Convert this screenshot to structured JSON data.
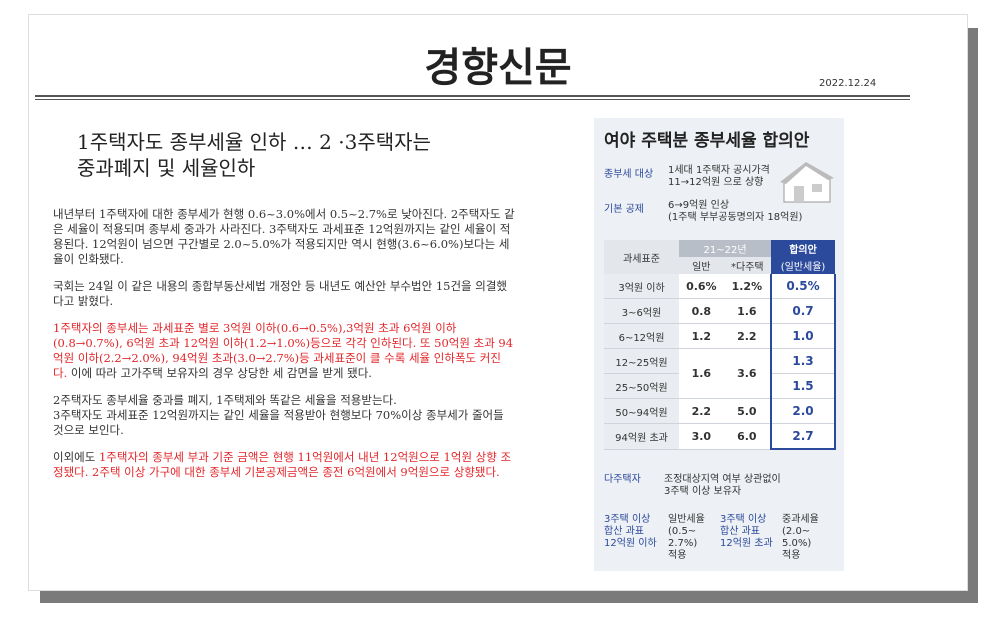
{
  "header": {
    "masthead": "경향신문",
    "date": "2022.12.24"
  },
  "article": {
    "headline": [
      "1주택자도 종부세율 인하 … 2 ·3주택자는",
      "중과폐지 및 세율인하"
    ],
    "paragraphs": [
      [
        {
          "text": "내년부터 1주택자에 대한 종부세가 현행 0.6~3.0%에서 0.5~2.7%로 낮아진다. 2주택자도 같은 세율이 적용되며 종부세 중과가 사라진다. 3주택자도 과세표준 12억원까지는 같인 세율이 적용된다. 12억원이 넘으면 구간별로 2.0~5.0%가 적용되지만 역시 현행(3.6~6.0%)보다는 세율이 인화됐다.",
          "red": false
        }
      ],
      [
        {
          "text": "국회는 24일 이 같은 내용의 종합부동산세법 개정안 등 내년도 예산안 부수법안 15건을 의결했다고 밝혔다.",
          "red": false
        }
      ],
      [
        {
          "text": "1주택자의 종부세는 과세표준 별로 3억원 이하(0.6→0.5%),3억원 초과 6억원 이하(0.8→0.7%), 6억원 초과 12억원 이하(1.2→1.0%)등으로 각각 인하된다. 또 50억원 초과 94억원 이하(2.2→2.0%), 94억원 초과(3.0→2.7%)등 과세표준이 클 수록 세율 인하폭도 커진다.",
          "red": true
        },
        {
          "text": " 이에 따라 고가주택 보유자의 경우 상당한 세 감면을 받게 됐다.",
          "red": false
        }
      ],
      [
        {
          "text": "2주택자도 종부세율 중과를 폐지, 1주택제와 똑같은 세율을 적용받는다.",
          "red": false
        },
        {
          "text": "3주택자도 과세표준 12억원까지는 같인 세율을 적용받아 현행보다 70%이상 종부세가 줄어들 것으로 보인다.",
          "red": false
        }
      ],
      [
        {
          "text": "이외에도 ",
          "red": false
        },
        {
          "text": "1주택자의 종부세 부과 기준 금액은 현행 11억원에서 내년 12억원으로 1억원 상향 조정됐다. 2주택 이상 가구에 대한 종부세 기본공제금액은 종전 6억원에서 9억원으로 상향됐다.",
          "red": true
        }
      ]
    ]
  },
  "infographic": {
    "title": "여야 주택분 종부세율 합의안",
    "info": [
      {
        "label": "종부세 대상",
        "lines": [
          "1세대 1주택자 공시가격",
          "11→12억원 으로 상향"
        ]
      },
      {
        "label": "기본 공제",
        "lines": [
          "6→9억원 인상",
          "(1주택 부부공동명의자 18억원)"
        ]
      }
    ],
    "table": {
      "header": {
        "bracket": "과세표준",
        "period": "21~22년",
        "general": "일반",
        "multi": "*다주택",
        "proposal": "합의안",
        "proposal_sub": "(일반세율)"
      },
      "rows": [
        {
          "bracket": "3억원 이하",
          "general": "0.6%",
          "multi": "1.2%",
          "proposal": "0.5%"
        },
        {
          "bracket": "3~6억원",
          "general": "0.8",
          "multi": "1.6",
          "proposal": "0.7"
        },
        {
          "bracket": "6~12억원",
          "general": "1.2",
          "multi": "2.2",
          "proposal": "1.0"
        },
        {
          "brackets": [
            "12~25억원",
            "25~50억원"
          ],
          "general": "1.6",
          "multi": "3.6",
          "proposals": [
            "1.3",
            "1.5"
          ]
        },
        {
          "bracket": "50~94억원",
          "general": "2.2",
          "multi": "5.0",
          "proposal": "2.0"
        },
        {
          "bracket": "94억원 초과",
          "general": "3.0",
          "multi": "6.0",
          "proposal": "2.7"
        }
      ]
    },
    "multi_owner": {
      "label": "다주택자",
      "lines": [
        "조정대상지역 여부 상관없이",
        "3주택 이상 보유자"
      ]
    },
    "notes": [
      {
        "label": [
          "3주택 이상",
          "합산 과표",
          "12억원 이하"
        ],
        "lines": [
          "일반세율",
          "(0.5~",
          "2.7%)",
          "적용"
        ]
      },
      {
        "label": [
          "3주택 이상",
          "합산 과표",
          "12억원 초과"
        ],
        "lines": [
          "중과세율",
          "(2.0~",
          "5.0%)",
          "적용"
        ]
      }
    ]
  }
}
